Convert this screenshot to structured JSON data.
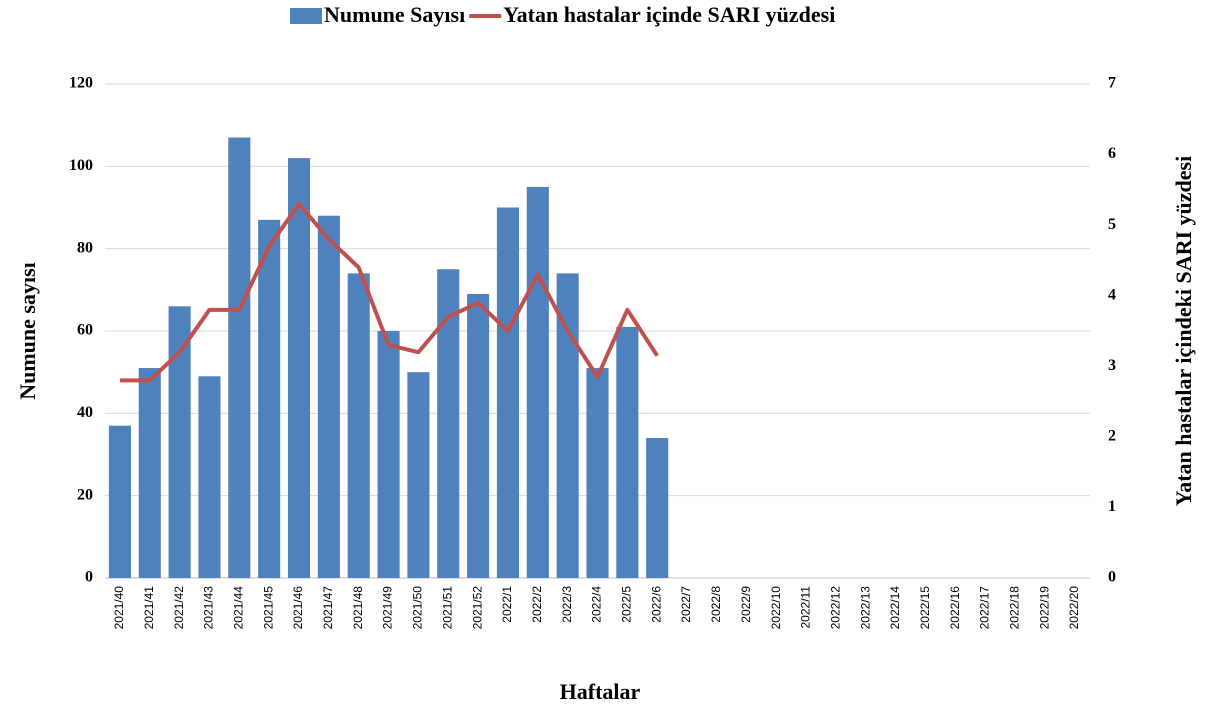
{
  "chart_data": {
    "type": "bar-line",
    "y_label": "Numune sayısı",
    "y2_label": "Yatan hastalar içindeki SARI yüzdesi",
    "x_label": "Haftalar",
    "categories": [
      "2021/40",
      "2021/41",
      "2021/42",
      "2021/43",
      "2021/44",
      "2021/45",
      "2021/46",
      "2021/47",
      "2021/48",
      "2021/49",
      "2021/50",
      "2021/51",
      "2021/52",
      "2022/1",
      "2022/2",
      "2022/3",
      "2022/4",
      "2022/5",
      "2022/6",
      "2022/7",
      "2022/8",
      "2022/9",
      "2022/10",
      "2022/11",
      "2022/12",
      "2022/13",
      "2022/14",
      "2022/15",
      "2022/16",
      "2022/17",
      "2022/18",
      "2022/19",
      "2022/20"
    ],
    "series": [
      {
        "name": "Numune Sayısı",
        "type": "bar",
        "color": "#4f81bd",
        "values": [
          37,
          51,
          66,
          49,
          107,
          87,
          102,
          88,
          74,
          60,
          50,
          75,
          69,
          90,
          95,
          74,
          51,
          61,
          34,
          null,
          null,
          null,
          null,
          null,
          null,
          null,
          null,
          null,
          null,
          null,
          null,
          null,
          null
        ]
      },
      {
        "name": "Yatan hastalar içinde SARI yüzdesi",
        "type": "line",
        "axis": "y2",
        "color": "#c0504d",
        "values": [
          2.8,
          2.8,
          3.2,
          3.8,
          3.8,
          4.7,
          5.3,
          4.8,
          4.4,
          3.3,
          3.2,
          3.7,
          3.9,
          3.5,
          4.3,
          3.5,
          2.85,
          3.8,
          3.15,
          null,
          null,
          null,
          null,
          null,
          null,
          null,
          null,
          null,
          null,
          null,
          null,
          null,
          null
        ]
      }
    ],
    "ylim": [
      0,
      120
    ],
    "yticks": [
      0,
      20,
      40,
      60,
      80,
      100,
      120
    ],
    "y2lim": [
      0,
      7
    ],
    "y2ticks": [
      0,
      1,
      2,
      3,
      4,
      5,
      6,
      7
    ],
    "grid": true,
    "legend": "top"
  }
}
